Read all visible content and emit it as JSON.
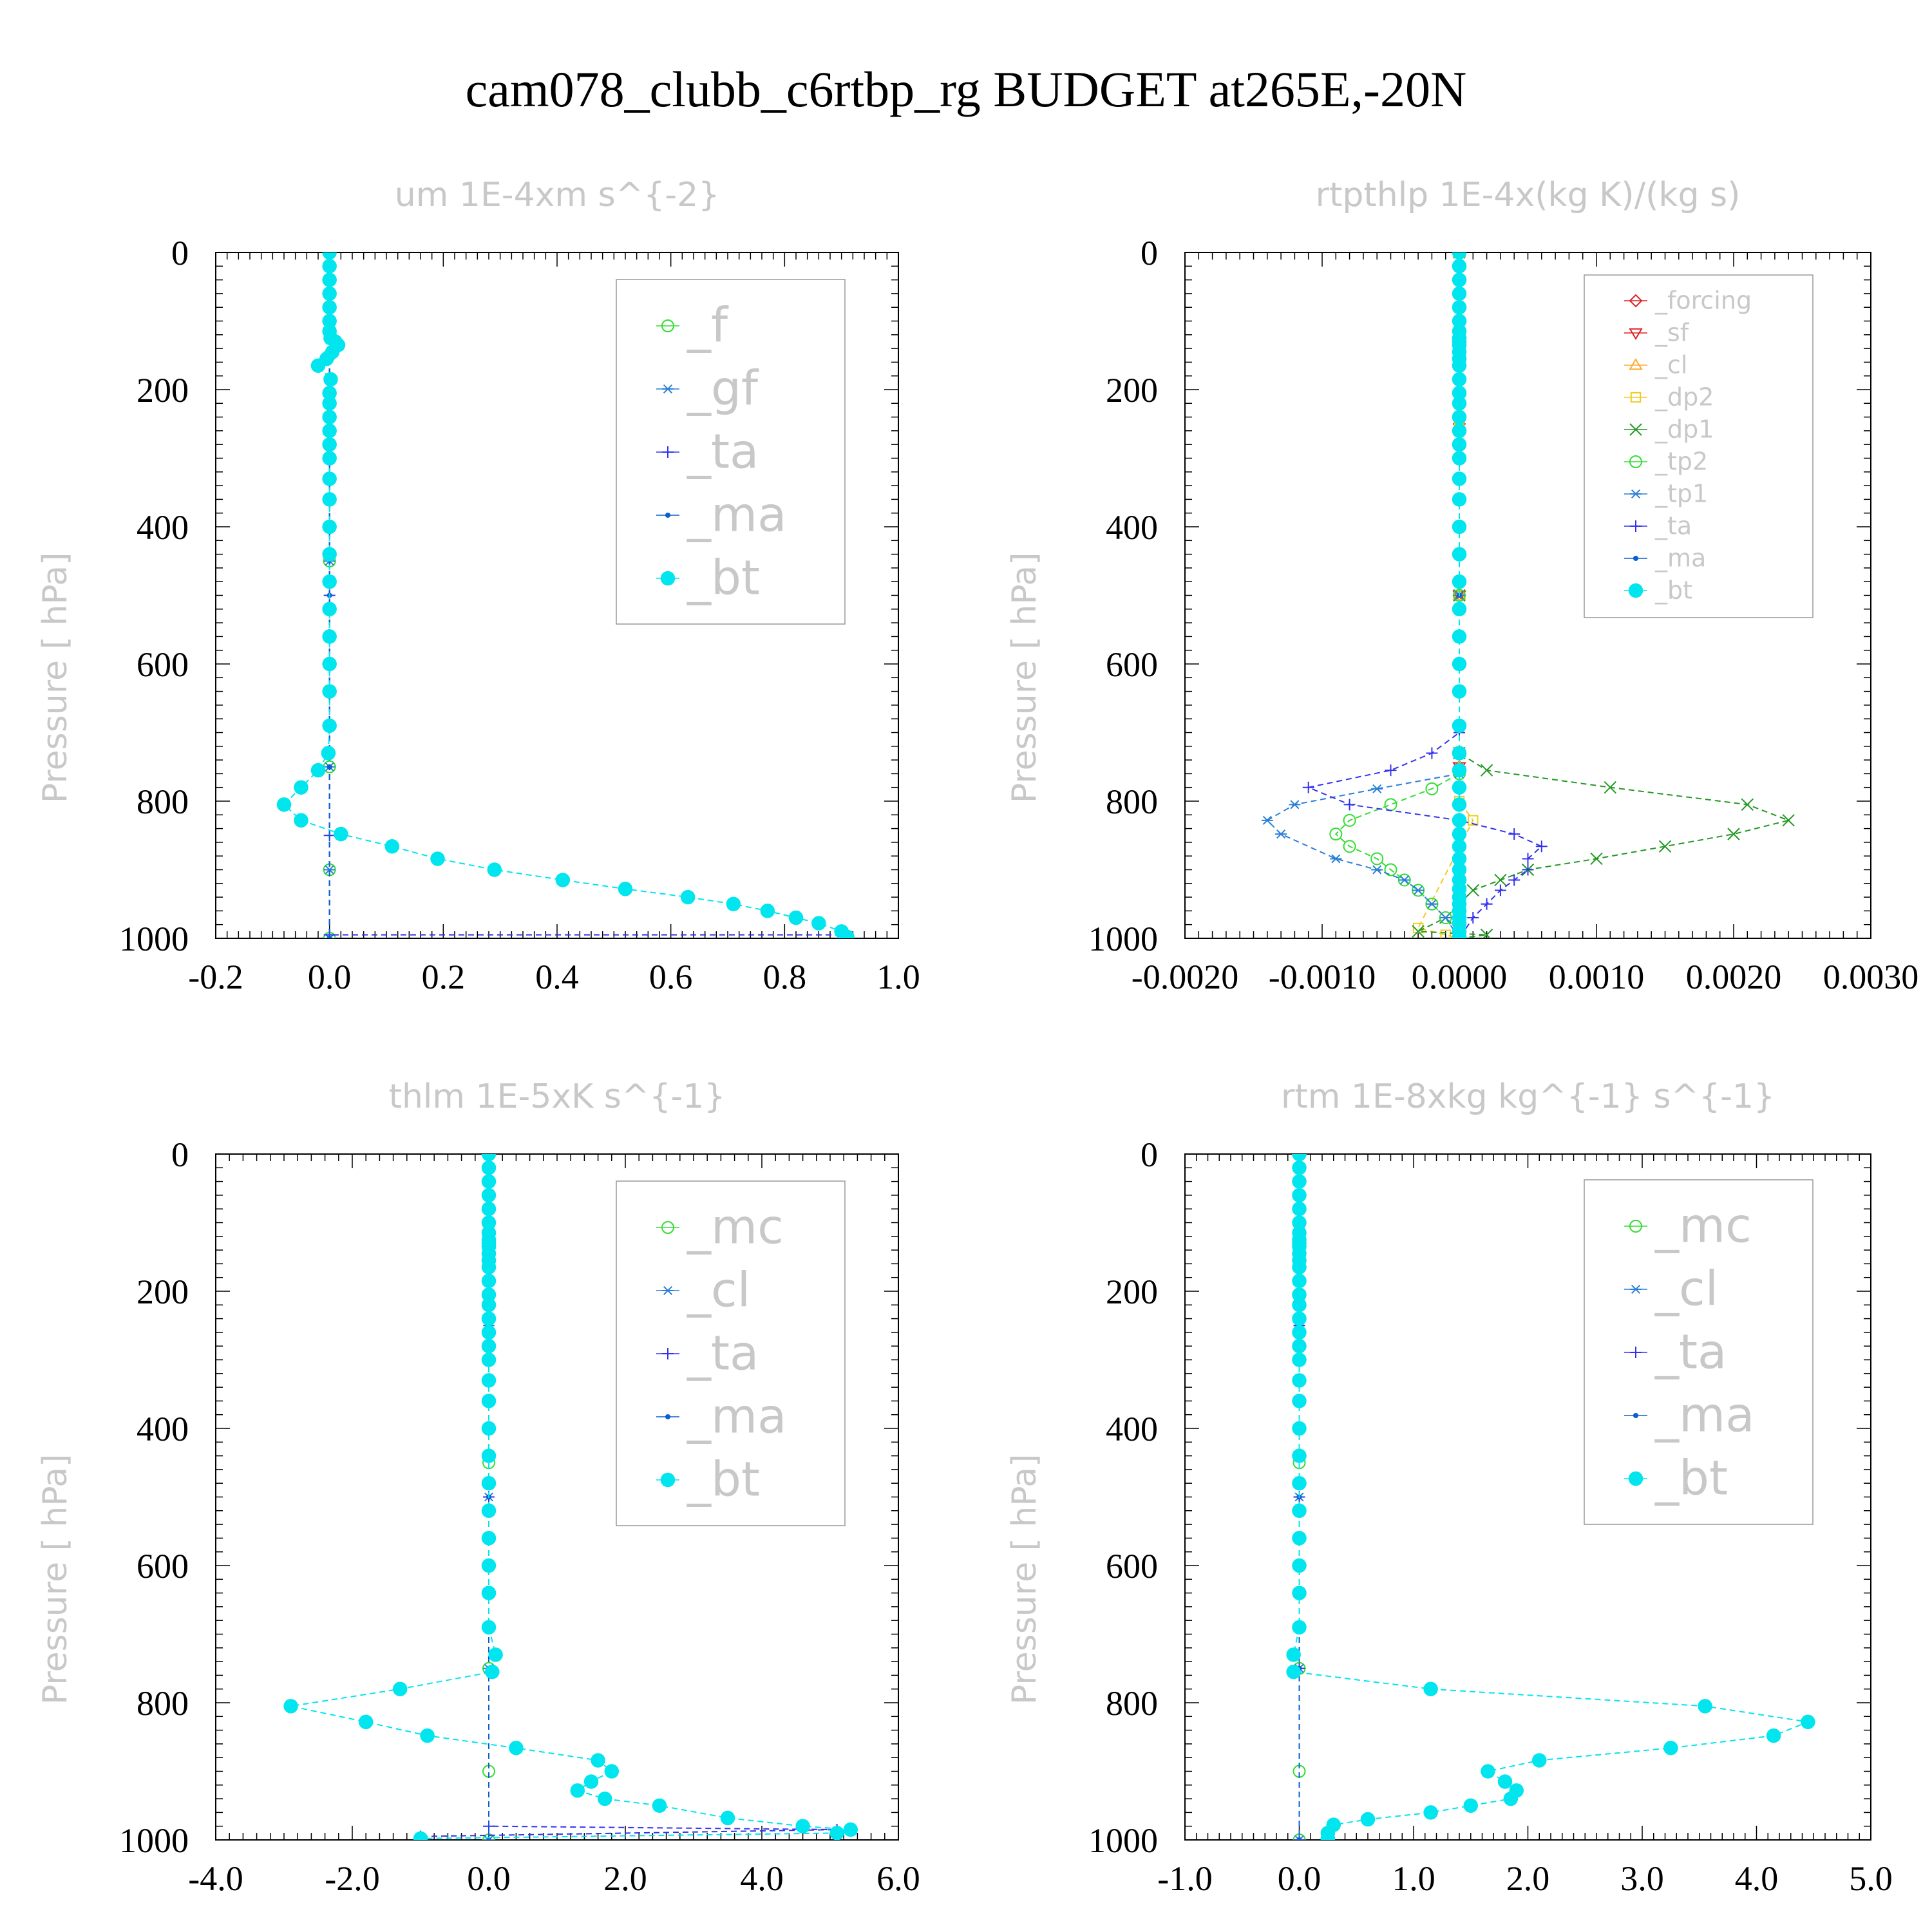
{
  "figure": {
    "title": "cam078_clubb_c6rtbp_rg  BUDGET at265E,-20N"
  },
  "colors": {
    "f": "#33dd33",
    "mc": "#33dd33",
    "tp2": "#33dd33",
    "gf": "#2a7fd4",
    "cl_blue": "#2a7fd4",
    "tp1": "#2a7fd4",
    "ta": "#3333ee",
    "ma": "#0d5fd0",
    "bt": "#00e5ee",
    "forcing": "#dd2222",
    "sf": "#dd2222",
    "cl_orange": "#ffaa33",
    "dp2": "#eecc22",
    "dp1": "#229922"
  },
  "chart_data": [
    {
      "type": "line",
      "title": "um   1E-4xm s^{-2}",
      "xlabel": "",
      "ylabel": "Pressure [ hPa]",
      "xlim": [
        -0.2,
        1.0
      ],
      "ylim": [
        1000,
        0
      ],
      "xticks": [
        "-0.2",
        "0.0",
        "0.2",
        "0.4",
        "0.6",
        "0.8",
        "1.0"
      ],
      "xtick_values": [
        -0.2,
        0.0,
        0.2,
        0.4,
        0.6,
        0.8,
        1.0
      ],
      "yticks": [
        "0",
        "200",
        "400",
        "600",
        "800",
        "1000"
      ],
      "ytick_values": [
        0,
        200,
        400,
        600,
        800,
        1000
      ],
      "legend": [
        "_f",
        "_gf",
        "_ta",
        "_ma",
        "_bt"
      ],
      "series": [
        {
          "name": "_f",
          "color": "#33dd33",
          "marker": "circle",
          "x": [
            0,
            0,
            0,
            0,
            0,
            0,
            0,
            0
          ],
          "y": [
            0,
            150,
            300,
            450,
            600,
            750,
            900,
            1000
          ]
        },
        {
          "name": "_gf",
          "color": "#2a7fd4",
          "marker": "asterisk",
          "x": [
            0,
            0,
            0,
            0,
            0,
            0,
            0,
            0
          ],
          "y": [
            0,
            150,
            300,
            450,
            600,
            750,
            900,
            1000
          ]
        },
        {
          "name": "_ta",
          "color": "#3333ee",
          "marker": "plus",
          "x": [
            0,
            0,
            0,
            0,
            0.9,
            0.9
          ],
          "y": [
            0,
            500,
            850,
            995,
            995,
            1000
          ]
        },
        {
          "name": "_ma",
          "color": "#0d5fd0",
          "marker": "dot",
          "x": [
            0,
            0,
            0,
            0,
            0
          ],
          "y": [
            0,
            250,
            500,
            750,
            1000
          ]
        },
        {
          "name": "_bt",
          "color": "#00e5ee",
          "marker": "filled",
          "x": [
            0,
            0,
            0,
            0,
            0,
            0,
            0,
            0.002,
            0.01,
            0.015,
            0.005,
            -0.005,
            -0.02,
            0.002,
            0,
            0,
            0,
            0,
            0,
            0,
            0,
            0,
            0,
            0,
            0,
            0,
            0,
            0,
            0,
            0,
            -0.002,
            -0.02,
            -0.05,
            -0.08,
            -0.05,
            0.02,
            0.11,
            0.19,
            0.29,
            0.41,
            0.52,
            0.63,
            0.71,
            0.77,
            0.82,
            0.86,
            0.9,
            0.91
          ],
          "y": [
            0,
            20,
            40,
            60,
            80,
            100,
            115,
            125,
            130,
            135,
            145,
            155,
            165,
            185,
            205,
            220,
            240,
            260,
            280,
            300,
            330,
            360,
            400,
            440,
            480,
            520,
            560,
            600,
            640,
            690,
            730,
            755,
            780,
            805,
            828,
            848,
            866,
            884,
            900,
            915,
            928,
            940,
            950,
            960,
            970,
            978,
            990,
            998
          ]
        }
      ]
    },
    {
      "type": "line",
      "title": "rtpthlp   1E-4x(kg K)/(kg s)",
      "xlabel": "",
      "ylabel": "Pressure [ hPa]",
      "xlim": [
        -0.002,
        0.003
      ],
      "ylim": [
        1000,
        0
      ],
      "xticks": [
        "-0.0020",
        "-0.0010",
        "0.0000",
        "0.0010",
        "0.0020",
        "0.0030"
      ],
      "xtick_values": [
        -0.002,
        -0.001,
        0.0,
        0.001,
        0.002,
        0.003
      ],
      "yticks": [
        "0",
        "200",
        "400",
        "600",
        "800",
        "1000"
      ],
      "ytick_values": [
        0,
        200,
        400,
        600,
        800,
        1000
      ],
      "legend": [
        "_forcing",
        "_sf",
        "_cl",
        "_dp2",
        "_dp1",
        "_tp2",
        "_tp1",
        "_ta",
        "_ma",
        "_bt"
      ],
      "series": [
        {
          "name": "_forcing",
          "color": "#dd2222",
          "marker": "diamond",
          "x": [
            0,
            0,
            0,
            0,
            0
          ],
          "y": [
            0,
            250,
            500,
            750,
            1000
          ]
        },
        {
          "name": "_sf",
          "color": "#dd2222",
          "marker": "tri-down",
          "x": [
            0,
            0,
            0,
            0,
            0
          ],
          "y": [
            0,
            250,
            500,
            750,
            1000
          ]
        },
        {
          "name": "_cl",
          "color": "#ffaa33",
          "marker": "tri-up",
          "x": [
            0,
            0,
            0,
            0,
            0
          ],
          "y": [
            0,
            250,
            500,
            750,
            1000
          ]
        },
        {
          "name": "_dp2",
          "color": "#eecc22",
          "marker": "square",
          "x": [
            0,
            0,
            0,
            0,
            0.0001,
            -0.0003,
            -0.0001,
            0
          ],
          "y": [
            0,
            250,
            500,
            800,
            828,
            985,
            995,
            1000
          ]
        },
        {
          "name": "_dp1",
          "color": "#229922",
          "marker": "x",
          "x": [
            0,
            0,
            0,
            0.0002,
            0.0011,
            0.0021,
            0.0024,
            0.002,
            0.0015,
            0.001,
            0.0005,
            0.0003,
            0.0001,
            0,
            -0.0001,
            -0.0003,
            0.0002,
            0
          ],
          "y": [
            0,
            500,
            730,
            755,
            780,
            805,
            828,
            848,
            866,
            884,
            900,
            915,
            930,
            950,
            970,
            990,
            995,
            1000
          ]
        },
        {
          "name": "_tp2",
          "color": "#33dd33",
          "marker": "circle",
          "x": [
            0,
            0,
            0,
            -0.0002,
            -0.0005,
            -0.0008,
            -0.0009,
            -0.0008,
            -0.0006,
            -0.0005,
            -0.0004,
            -0.0003,
            -0.0002,
            -0.0001,
            0
          ],
          "y": [
            0,
            500,
            760,
            782,
            805,
            828,
            848,
            866,
            884,
            900,
            915,
            930,
            950,
            970,
            1000
          ]
        },
        {
          "name": "_tp1",
          "color": "#2a7fd4",
          "marker": "asterisk",
          "x": [
            0,
            0,
            0,
            -0.0006,
            -0.0012,
            -0.0014,
            -0.0013,
            -0.0009,
            -0.0006,
            -0.0004,
            -0.0003,
            -0.0002,
            -0.0001,
            0
          ],
          "y": [
            0,
            500,
            760,
            782,
            805,
            828,
            848,
            884,
            900,
            915,
            930,
            950,
            970,
            1000
          ]
        },
        {
          "name": "_ta",
          "color": "#3333ee",
          "marker": "plus",
          "x": [
            0,
            0,
            -0.0002,
            -0.0005,
            -0.0011,
            -0.0008,
            0,
            0.0004,
            0.0006,
            0.0005,
            0.0005,
            0.0004,
            0.0003,
            0.0002,
            0.0001,
            0
          ],
          "y": [
            0,
            700,
            730,
            755,
            780,
            805,
            828,
            848,
            866,
            884,
            900,
            915,
            930,
            950,
            970,
            1000
          ]
        },
        {
          "name": "_ma",
          "color": "#0d5fd0",
          "marker": "dot",
          "x": [
            0,
            0,
            0,
            0,
            0
          ],
          "y": [
            0,
            250,
            500,
            750,
            1000
          ]
        },
        {
          "name": "_bt",
          "color": "#00e5ee",
          "marker": "filled",
          "x": [
            0,
            0,
            0,
            0,
            0,
            0,
            0,
            0,
            0,
            0,
            0,
            0,
            0,
            0,
            0,
            0,
            0,
            0,
            0,
            0,
            0,
            0,
            0,
            0,
            0,
            0,
            0,
            0,
            0,
            0,
            0,
            0,
            0,
            0,
            0,
            0,
            0,
            0,
            0,
            0,
            0,
            0,
            0,
            0,
            0,
            0,
            0,
            0
          ],
          "y": [
            0,
            20,
            40,
            60,
            80,
            100,
            115,
            125,
            130,
            135,
            145,
            155,
            165,
            185,
            205,
            220,
            240,
            260,
            280,
            300,
            330,
            360,
            400,
            440,
            480,
            520,
            560,
            600,
            640,
            690,
            730,
            755,
            780,
            805,
            828,
            848,
            866,
            884,
            900,
            915,
            928,
            940,
            950,
            960,
            970,
            978,
            990,
            998
          ]
        }
      ]
    },
    {
      "type": "line",
      "title": "thlm   1E-5xK s^{-1}",
      "xlabel": "",
      "ylabel": "Pressure [ hPa]",
      "xlim": [
        -4.0,
        6.0
      ],
      "ylim": [
        1000,
        0
      ],
      "xticks": [
        "-4.0",
        "-2.0",
        "0.0",
        "2.0",
        "4.0",
        "6.0"
      ],
      "xtick_values": [
        -4.0,
        -2.0,
        0.0,
        2.0,
        4.0,
        6.0
      ],
      "yticks": [
        "0",
        "200",
        "400",
        "600",
        "800",
        "1000"
      ],
      "ytick_values": [
        0,
        200,
        400,
        600,
        800,
        1000
      ],
      "legend": [
        "_mc",
        "_cl",
        "_ta",
        "_ma",
        "_bt"
      ],
      "series": [
        {
          "name": "_mc",
          "color": "#33dd33",
          "marker": "circle",
          "x": [
            0,
            0,
            0,
            0,
            0,
            0,
            0,
            0
          ],
          "y": [
            0,
            150,
            300,
            450,
            600,
            750,
            900,
            1000
          ]
        },
        {
          "name": "_cl",
          "color": "#2a7fd4",
          "marker": "asterisk",
          "x": [
            0,
            0,
            0,
            0,
            0
          ],
          "y": [
            0,
            250,
            500,
            750,
            1000
          ]
        },
        {
          "name": "_ta",
          "color": "#3333ee",
          "marker": "plus",
          "x": [
            0,
            0,
            0,
            5.1,
            -1.0
          ],
          "y": [
            0,
            500,
            980,
            985,
            995
          ]
        },
        {
          "name": "_ma",
          "color": "#0d5fd0",
          "marker": "dot",
          "x": [
            0,
            0,
            0,
            0,
            0
          ],
          "y": [
            0,
            250,
            500,
            750,
            1000
          ]
        },
        {
          "name": "_bt",
          "color": "#00e5ee",
          "marker": "filled",
          "x": [
            0,
            0,
            0,
            0,
            0,
            0,
            0,
            0,
            0,
            0,
            0,
            0,
            0,
            0,
            0,
            0,
            0,
            0,
            0,
            0,
            0,
            0,
            0,
            0,
            0,
            0,
            0,
            0,
            0,
            0,
            0.1,
            0.05,
            -1.3,
            -2.9,
            -1.8,
            -0.9,
            0.4,
            1.6,
            1.8,
            1.5,
            1.3,
            1.7,
            2.5,
            3.5,
            4.6,
            5.3,
            5.1,
            -1.0
          ],
          "y": [
            0,
            20,
            40,
            60,
            80,
            100,
            115,
            125,
            130,
            135,
            145,
            155,
            165,
            185,
            205,
            220,
            240,
            260,
            280,
            300,
            330,
            360,
            400,
            440,
            480,
            520,
            560,
            600,
            640,
            690,
            730,
            755,
            780,
            805,
            828,
            848,
            866,
            884,
            900,
            915,
            928,
            940,
            950,
            968,
            980,
            985,
            990,
            998
          ]
        }
      ]
    },
    {
      "type": "line",
      "title": "rtm   1E-8xkg kg^{-1} s^{-1}",
      "xlabel": "",
      "ylabel": "Pressure [ hPa]",
      "xlim": [
        -1.0,
        5.0
      ],
      "ylim": [
        1000,
        0
      ],
      "xticks": [
        "-1.0",
        "0.0",
        "1.0",
        "2.0",
        "3.0",
        "4.0",
        "5.0"
      ],
      "xtick_values": [
        -1.0,
        0.0,
        1.0,
        2.0,
        3.0,
        4.0,
        5.0
      ],
      "yticks": [
        "0",
        "200",
        "400",
        "600",
        "800",
        "1000"
      ],
      "ytick_values": [
        0,
        200,
        400,
        600,
        800,
        1000
      ],
      "legend": [
        "_mc",
        "_cl",
        "_ta",
        "_ma",
        "_bt"
      ],
      "series": [
        {
          "name": "_mc",
          "color": "#33dd33",
          "marker": "circle",
          "x": [
            0,
            0,
            0,
            0,
            0,
            0,
            0,
            0
          ],
          "y": [
            0,
            150,
            300,
            450,
            600,
            750,
            900,
            1000
          ]
        },
        {
          "name": "_cl",
          "color": "#2a7fd4",
          "marker": "asterisk",
          "x": [
            0,
            0,
            0,
            0,
            0
          ],
          "y": [
            0,
            250,
            500,
            750,
            1000
          ]
        },
        {
          "name": "_ta",
          "color": "#3333ee",
          "marker": "plus",
          "x": [
            0,
            0,
            0,
            0,
            0
          ],
          "y": [
            0,
            250,
            500,
            750,
            1000
          ]
        },
        {
          "name": "_ma",
          "color": "#0d5fd0",
          "marker": "dot",
          "x": [
            0,
            0,
            0,
            0,
            0
          ],
          "y": [
            0,
            250,
            500,
            750,
            1000
          ]
        },
        {
          "name": "_bt",
          "color": "#00e5ee",
          "marker": "filled",
          "x": [
            0,
            0,
            0,
            0,
            0,
            0,
            0,
            0,
            0,
            0,
            0,
            0,
            0,
            0,
            0,
            0,
            0,
            0,
            0,
            0,
            0,
            0,
            0,
            0,
            0,
            0,
            0,
            0,
            0,
            0,
            -0.05,
            -0.05,
            1.15,
            3.55,
            4.45,
            4.15,
            3.25,
            2.1,
            1.65,
            1.8,
            1.9,
            1.85,
            1.5,
            1.15,
            0.6,
            0.3,
            0.25,
            0.25
          ],
          "y": [
            0,
            20,
            40,
            60,
            80,
            100,
            115,
            125,
            130,
            135,
            145,
            155,
            165,
            185,
            205,
            220,
            240,
            260,
            280,
            300,
            330,
            360,
            400,
            440,
            480,
            520,
            560,
            600,
            640,
            690,
            730,
            755,
            780,
            805,
            828,
            848,
            866,
            884,
            900,
            915,
            928,
            940,
            950,
            960,
            970,
            978,
            990,
            998
          ]
        }
      ]
    }
  ]
}
